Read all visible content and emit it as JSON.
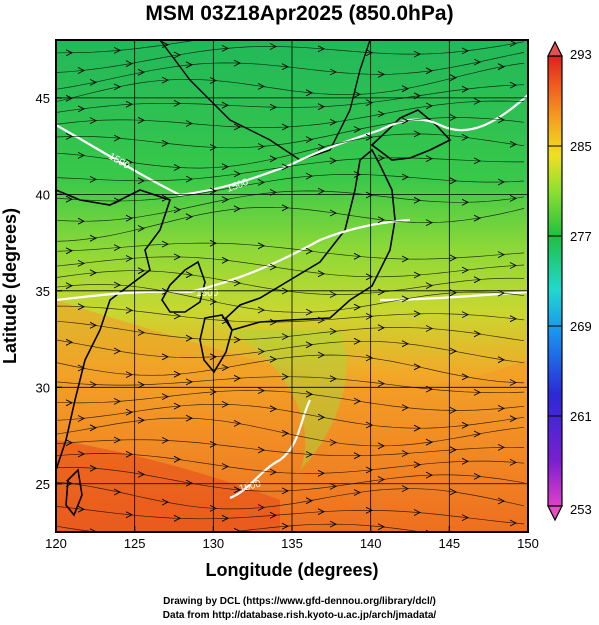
{
  "title": "MSM 03Z18Apr2025 (850.0hPa)",
  "x_axis": {
    "label": "Longitude (degrees)",
    "min": 120,
    "max": 150,
    "ticks": [
      "120",
      "125",
      "130",
      "135",
      "140",
      "145",
      "150"
    ]
  },
  "y_axis": {
    "label": "Latitude  (degrees)",
    "min": 22.5,
    "max": 48,
    "ticks": [
      "25",
      "30",
      "35",
      "40",
      "45"
    ]
  },
  "colorbar": {
    "min": 253,
    "max": 293,
    "ticks": [
      "293",
      "285",
      "277",
      "269",
      "261",
      "253"
    ],
    "colors": [
      "#e040c8",
      "#7a1fd0",
      "#2a2ad8",
      "#1a8ff0",
      "#20d8d0",
      "#20c040",
      "#8ee030",
      "#f0e020",
      "#f5a020",
      "#f06020",
      "#e02020"
    ]
  },
  "contour_labels": [
    "1500",
    "1500",
    "1500",
    "1500"
  ],
  "footer": {
    "line1": "Drawing by DCL (https://www.gfd-dennou.org/library/dcl/)",
    "line2": "Data from http://database.rish.kyoto-u.ac.jp/arch/jmadata/"
  }
}
